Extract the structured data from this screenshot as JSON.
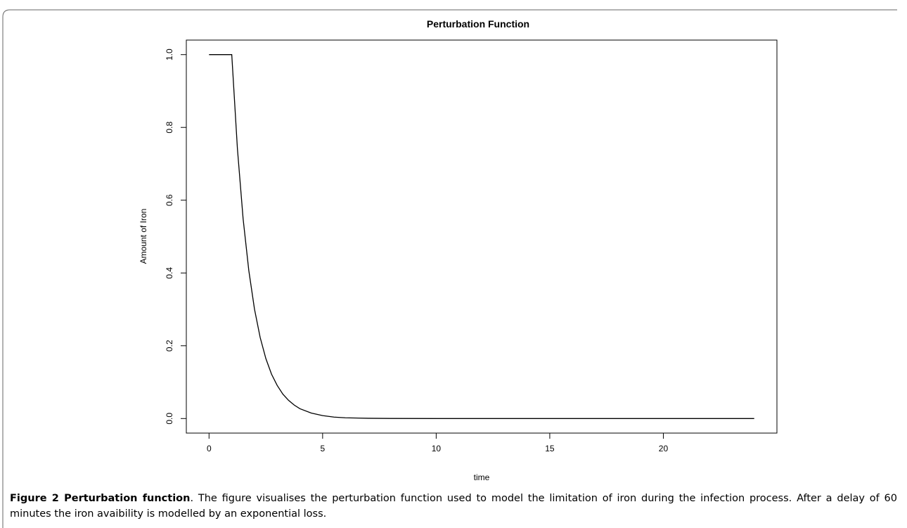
{
  "figure": {
    "caption_label": "Figure 2 Perturbation function",
    "caption_text": ". The figure visualises the perturbation function used to model the limitation of iron during the infection process. After a delay of 60 minutes the iron avaibility is modelled by an exponential loss."
  },
  "chart_data": {
    "type": "line",
    "title": "Perturbation Function",
    "xlabel": "time",
    "ylabel": "Amount of Iron",
    "xlim": [
      -1.0,
      25.0
    ],
    "ylim": [
      -0.04,
      1.04
    ],
    "xticks": [
      0,
      5,
      10,
      15,
      20
    ],
    "xtick_labels": [
      "0",
      "5",
      "10",
      "15",
      "20"
    ],
    "yticks": [
      0.0,
      0.2,
      0.4,
      0.6,
      0.8,
      1.0
    ],
    "ytick_labels": [
      "0.0",
      "0.2",
      "0.4",
      "0.6",
      "0.8",
      "1.0"
    ],
    "grid": false,
    "legend": "none",
    "series": [
      {
        "x": [
          0,
          0.5,
          1.0,
          1.25,
          1.5,
          1.75,
          2.0,
          2.25,
          2.5,
          2.75,
          3.0,
          3.25,
          3.5,
          3.75,
          4.0,
          4.5,
          5.0,
          5.5,
          6.0,
          7.0,
          8.0,
          10.0,
          12.0,
          16.0,
          20.0,
          24.0
        ],
        "y": [
          1.0,
          1.0,
          1.0,
          0.741,
          0.549,
          0.407,
          0.301,
          0.223,
          0.165,
          0.122,
          0.091,
          0.067,
          0.05,
          0.037,
          0.027,
          0.015,
          0.008,
          0.004,
          0.002,
          0.0007,
          0.0002,
          0.0,
          0.0,
          0.0,
          0.0,
          0.0
        ],
        "color": "#000000"
      }
    ]
  }
}
